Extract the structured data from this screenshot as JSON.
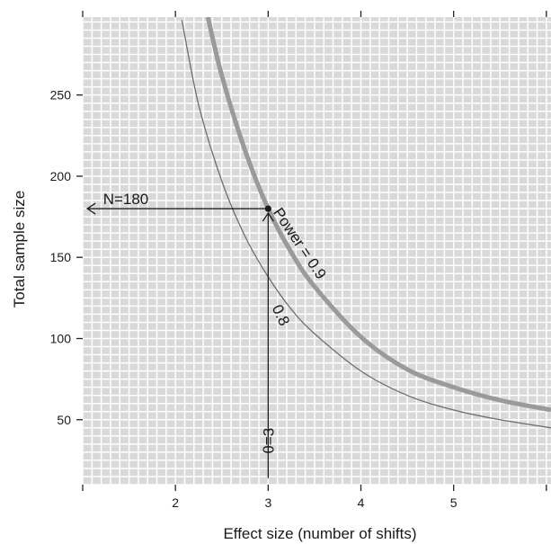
{
  "chart_data": {
    "type": "line",
    "xlabel": "Effect size (number of shifts)",
    "ylabel": "Total sample size",
    "xlim": [
      1.0,
      6.05
    ],
    "ylim": [
      10,
      298
    ],
    "x_ticks": [
      2,
      3,
      4,
      5
    ],
    "y_ticks": [
      50,
      100,
      150,
      200,
      250
    ],
    "grid": true,
    "series": [
      {
        "name": "Power = 0.9",
        "x": [
          2.35,
          2.5,
          2.75,
          3.0,
          3.25,
          3.5,
          4.0,
          4.5,
          5.0,
          5.5,
          6.05
        ],
        "y": [
          298,
          262,
          216,
          180,
          153,
          132,
          101,
          81,
          70,
          62,
          56
        ]
      },
      {
        "name": "0.8",
        "x": [
          2.07,
          2.25,
          2.5,
          2.75,
          3.0,
          3.25,
          3.5,
          4.0,
          4.5,
          5.0,
          5.5,
          6.05
        ],
        "y": [
          296,
          244,
          197,
          163,
          138,
          118,
          103,
          80,
          65,
          56,
          50,
          45
        ]
      }
    ],
    "annotations": [
      {
        "text": "N=180"
      },
      {
        "text": "θ=3"
      },
      {
        "text": "Power = 0.9"
      },
      {
        "text": "0.8"
      }
    ],
    "highlight_point": {
      "x": 3,
      "y": 180
    },
    "colors": {
      "background": "#d9d9d9",
      "grid": "#ffffff",
      "power09_line": "#9a9a9a",
      "power08_line": "#6e6e6e",
      "arrow": "#1a1a1a"
    }
  }
}
